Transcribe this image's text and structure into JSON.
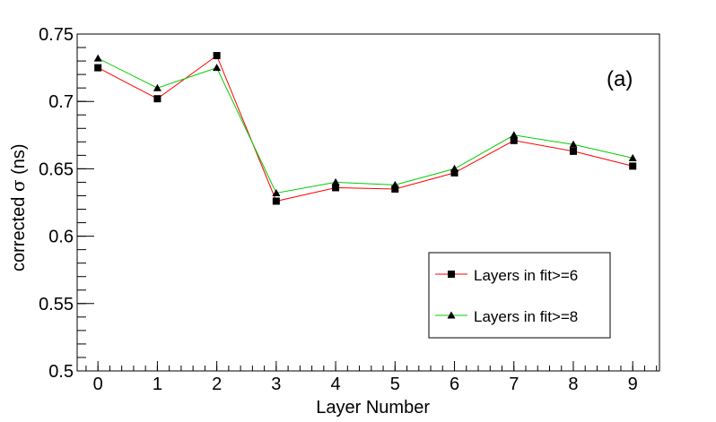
{
  "chart_data": {
    "type": "line",
    "panel_label": "(a)",
    "xlabel": "Layer Number",
    "ylabel_prefix": "corrected ",
    "ylabel_symbol": "σ",
    "ylabel_suffix": " (ns)",
    "xlim": [
      -0.35,
      9.45
    ],
    "ylim": [
      0.5,
      0.75
    ],
    "x_ticks": [
      0,
      1,
      2,
      3,
      4,
      5,
      6,
      7,
      8,
      9
    ],
    "x_tick_labels": [
      "0",
      "1",
      "2",
      "3",
      "4",
      "5",
      "6",
      "7",
      "8",
      "9"
    ],
    "y_ticks": [
      0.5,
      0.55,
      0.6,
      0.65,
      0.7,
      0.75
    ],
    "y_tick_labels": [
      "0.5",
      "0.55",
      "0.6",
      "0.65",
      "0.7",
      "0.75"
    ],
    "x": [
      0,
      1,
      2,
      3,
      4,
      5,
      6,
      7,
      8,
      9
    ],
    "series": [
      {
        "name": "Layers in fit>=6",
        "color": "#ff0000",
        "marker": "square",
        "values": [
          0.725,
          0.702,
          0.734,
          0.626,
          0.636,
          0.635,
          0.647,
          0.671,
          0.663,
          0.652
        ]
      },
      {
        "name": "Layers in fit>=8",
        "color": "#00cc00",
        "marker": "triangle",
        "values": [
          0.732,
          0.71,
          0.725,
          0.632,
          0.64,
          0.638,
          0.65,
          0.675,
          0.668,
          0.658
        ]
      }
    ],
    "legend_position": "bottom-right",
    "grid": false
  }
}
